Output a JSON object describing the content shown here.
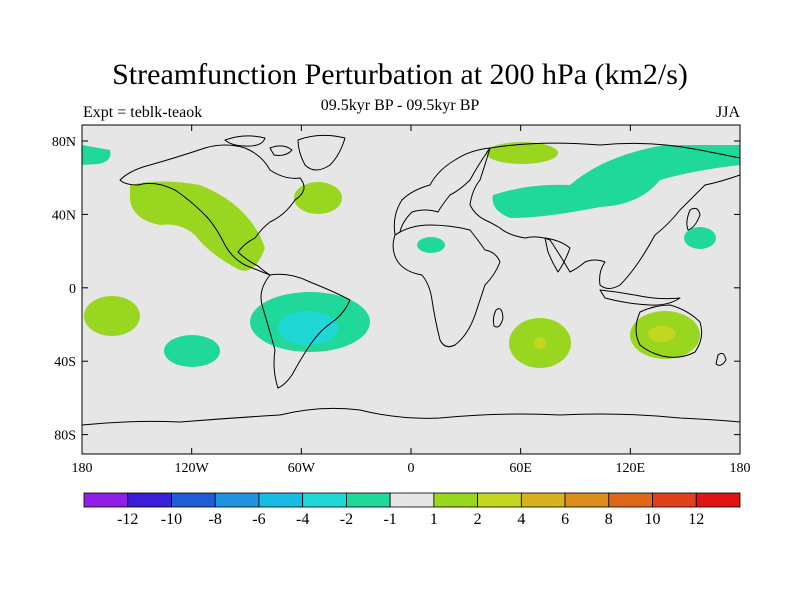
{
  "title": "Streamfunction Perturbation at 200 hPa (km2/s)",
  "subtitle": "09.5kyr BP - 09.5kyr BP",
  "left_label": "Expt = teblk-teaok",
  "right_label": "JJA",
  "map": {
    "background_color": "#e6e6e6",
    "lat_ticks": [
      "80N",
      "40N",
      "0",
      "40S",
      "80S"
    ],
    "lon_ticks": [
      "180",
      "120W",
      "60W",
      "0",
      "60E",
      "120E",
      "180"
    ]
  },
  "colorbar": {
    "colors": [
      "#8f1fe6",
      "#3a1ed8",
      "#1f5cd8",
      "#1f92e0",
      "#18bbe3",
      "#1fd8d5",
      "#1fd89a",
      "#e6e6e6",
      "#99d61f",
      "#c4d61f",
      "#d6b21f",
      "#dd8c1f",
      "#e0661a",
      "#e0401a",
      "#e01414"
    ],
    "labels": [
      "-12",
      "-10",
      "-8",
      "-6",
      "-4",
      "-2",
      "-1",
      "1",
      "2",
      "4",
      "6",
      "8",
      "10",
      "12"
    ]
  }
}
